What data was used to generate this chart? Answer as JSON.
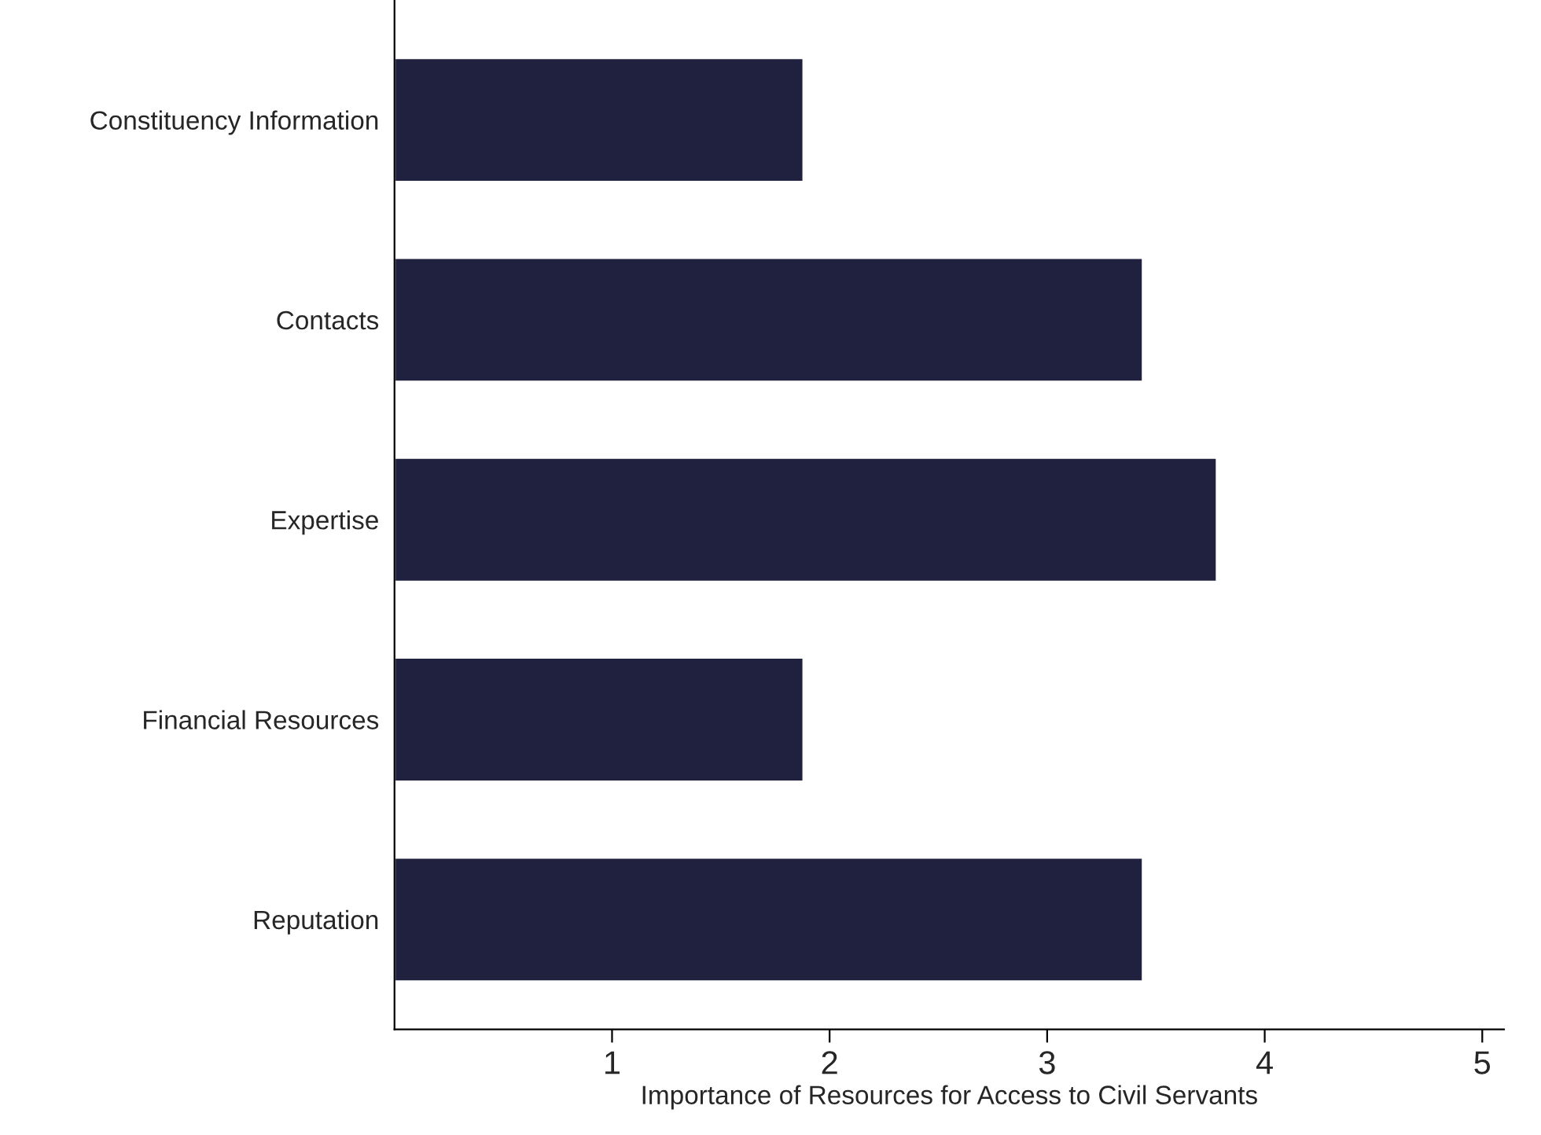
{
  "chart_data": {
    "type": "bar",
    "orientation": "horizontal",
    "xlabel": "Importance of Resources for Access to Civil Servants",
    "categories": [
      "Constituency Information",
      "Contacts",
      "Expertise",
      "Financial Resources",
      "Reputation"
    ],
    "values": [
      1.88,
      3.44,
      3.78,
      1.88,
      3.44
    ],
    "color": "#20203f",
    "xlim": [
      0,
      5.1
    ],
    "xticks": [
      1,
      2,
      3,
      4,
      5
    ],
    "grid": false,
    "legend": false
  }
}
